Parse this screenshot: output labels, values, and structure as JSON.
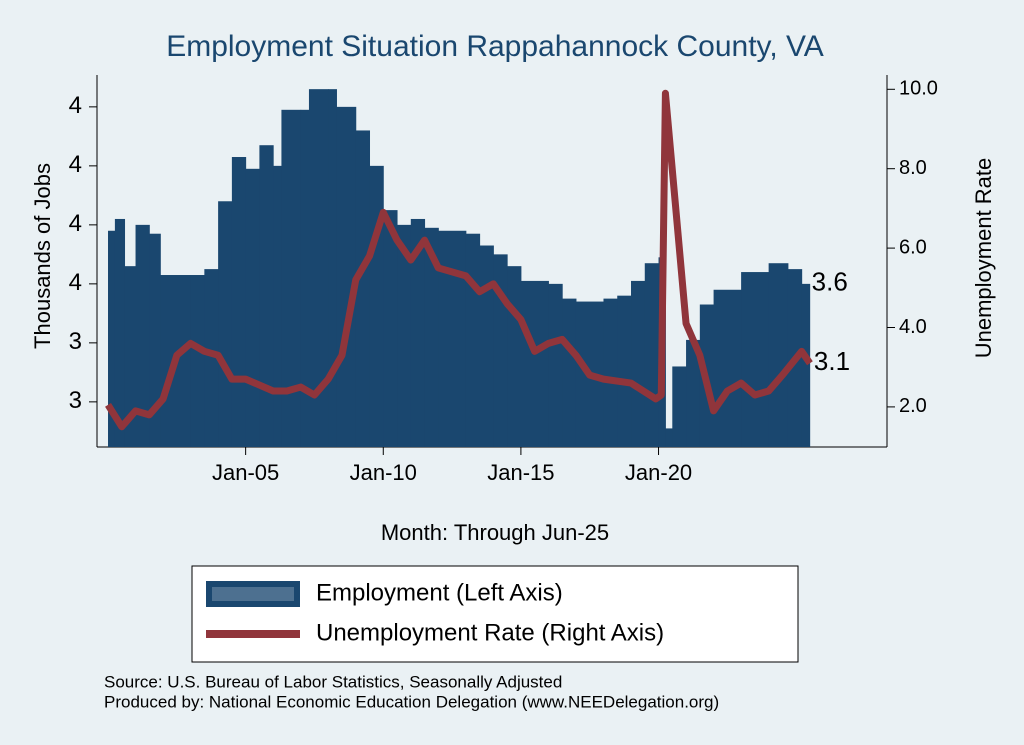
{
  "chart_data": {
    "type": "bar-line",
    "title": "Employment Situation Rappahannock  County, VA",
    "y_label": "Thousands of Jobs",
    "y2_label": "Unemployment Rate",
    "x_label": "Month: Through Jun-25",
    "source": "Source: U.S. Bureau of Labor Statistics, Seasonally Adjusted",
    "producer": "Produced by: National Economic Education Delegation (www.NEEDelegation.org)",
    "xlim": [
      1999.6,
      2028.3
    ],
    "xticks": [
      {
        "value": 2005,
        "label": "Jan-05"
      },
      {
        "value": 2010,
        "label": "Jan-10"
      },
      {
        "value": 2015,
        "label": "Jan-15"
      },
      {
        "value": 2020,
        "label": "Jan-20"
      }
    ],
    "ylim": [
      3.047,
      4.308
    ],
    "yticks": [
      {
        "value": 3.2,
        "label": "3"
      },
      {
        "value": 3.4,
        "label": "3"
      },
      {
        "value": 3.6,
        "label": "4"
      },
      {
        "value": 3.8,
        "label": "4"
      },
      {
        "value": 4.0,
        "label": "4"
      },
      {
        "value": 4.2,
        "label": "4"
      }
    ],
    "y2lim": [
      0.99,
      10.36
    ],
    "y2ticks": [
      {
        "value": 2,
        "label": "2.0"
      },
      {
        "value": 4,
        "label": "4.0"
      },
      {
        "value": 6,
        "label": "6.0"
      },
      {
        "value": 8,
        "label": "8.0"
      },
      {
        "value": 10,
        "label": "10.0"
      }
    ],
    "series": [
      {
        "name": "Employment (Left Axis)",
        "color": "#1a476f",
        "kind": "bar",
        "last_label": "3.6",
        "x": [
          2000.0,
          2000.25,
          2000.6,
          2001.0,
          2001.5,
          2001.9,
          2003.0,
          2003.5,
          2004.0,
          2004.5,
          2005.0,
          2005.5,
          2006.0,
          2006.3,
          2007.0,
          2007.3,
          2008.0,
          2008.3,
          2009.0,
          2009.5,
          2010.0,
          2010.5,
          2011.0,
          2011.5,
          2012.0,
          2013.0,
          2013.5,
          2014.0,
          2014.5,
          2015.0,
          2016.0,
          2016.5,
          2017.0,
          2018.0,
          2018.5,
          2019.0,
          2019.5,
          2020.0,
          2020.25,
          2020.5,
          2021.0,
          2021.5,
          2022.0,
          2023.0,
          2024.0,
          2024.7,
          2025.2
        ],
        "values": [
          3.78,
          3.82,
          3.66,
          3.8,
          3.77,
          3.63,
          3.63,
          3.65,
          3.88,
          4.03,
          3.99,
          4.07,
          4.0,
          4.19,
          4.19,
          4.26,
          4.26,
          4.2,
          4.12,
          4.0,
          3.85,
          3.8,
          3.82,
          3.79,
          3.78,
          3.77,
          3.73,
          3.7,
          3.66,
          3.61,
          3.6,
          3.55,
          3.54,
          3.55,
          3.56,
          3.61,
          3.67,
          3.69,
          3.11,
          3.32,
          3.41,
          3.53,
          3.58,
          3.64,
          3.67,
          3.65,
          3.6
        ]
      },
      {
        "name": "Unemployment Rate (Right Axis)",
        "color": "#90353b",
        "kind": "line",
        "axis": "y2",
        "last_label": "3.1",
        "x": [
          2000.0,
          2000.5,
          2001.0,
          2001.5,
          2002.0,
          2002.5,
          2003.0,
          2003.5,
          2004.0,
          2004.5,
          2005.0,
          2006.0,
          2006.5,
          2007.0,
          2007.5,
          2008.0,
          2008.5,
          2009.0,
          2009.5,
          2010.0,
          2010.5,
          2011.0,
          2011.5,
          2012.0,
          2013.0,
          2013.5,
          2014.0,
          2014.5,
          2015.0,
          2015.5,
          2016.0,
          2016.5,
          2017.0,
          2017.5,
          2018.0,
          2019.0,
          2019.9,
          2020.1,
          2020.25,
          2020.6,
          2021.0,
          2021.5,
          2022.0,
          2022.5,
          2023.0,
          2023.5,
          2024.0,
          2024.5,
          2025.2,
          2025.5
        ],
        "values": [
          2.05,
          1.5,
          1.9,
          1.8,
          2.2,
          3.3,
          3.6,
          3.4,
          3.3,
          2.7,
          2.7,
          2.4,
          2.4,
          2.5,
          2.3,
          2.7,
          3.3,
          5.2,
          5.8,
          6.9,
          6.2,
          5.7,
          6.2,
          5.5,
          5.3,
          4.9,
          5.1,
          4.6,
          4.2,
          3.4,
          3.6,
          3.7,
          3.3,
          2.8,
          2.7,
          2.6,
          2.2,
          2.3,
          9.9,
          7.2,
          4.1,
          3.3,
          1.9,
          2.4,
          2.6,
          2.3,
          2.4,
          2.8,
          3.4,
          3.1
        ]
      }
    ]
  }
}
